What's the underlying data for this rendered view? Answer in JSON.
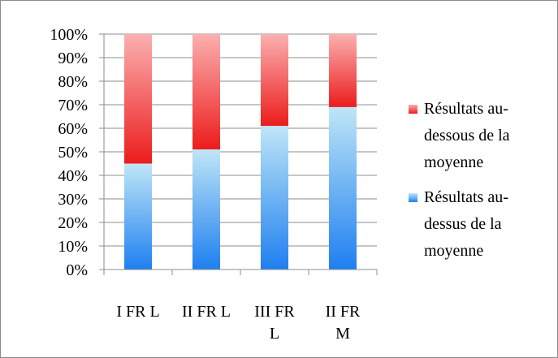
{
  "chart_data": {
    "type": "bar",
    "stacked": true,
    "percent_stacked": true,
    "categories": [
      [
        "I FR L"
      ],
      [
        "II FR L"
      ],
      [
        "III FR",
        "L"
      ],
      [
        "II FR",
        "M"
      ]
    ],
    "series": [
      {
        "name": [
          "Résultats au-",
          "dessus de la",
          "moyenne"
        ],
        "values": [
          45,
          51,
          61,
          69
        ],
        "color_top": "#bfe6f7",
        "color_bottom": "#1e7ff0"
      },
      {
        "name": [
          "Résultats au-",
          "dessous de la",
          "moyenne"
        ],
        "values": [
          55,
          49,
          39,
          31
        ],
        "color_top": "#fbb0b0",
        "color_bottom": "#ec1c1c"
      }
    ],
    "y_ticks": [
      "0%",
      "10%",
      "20%",
      "30%",
      "40%",
      "50%",
      "60%",
      "70%",
      "80%",
      "90%",
      "100%"
    ],
    "ylim": [
      0,
      100
    ],
    "grid": true,
    "grid_color": "#8c8c8c",
    "legend_position": "right",
    "title": "",
    "xlabel": "",
    "ylabel": ""
  }
}
